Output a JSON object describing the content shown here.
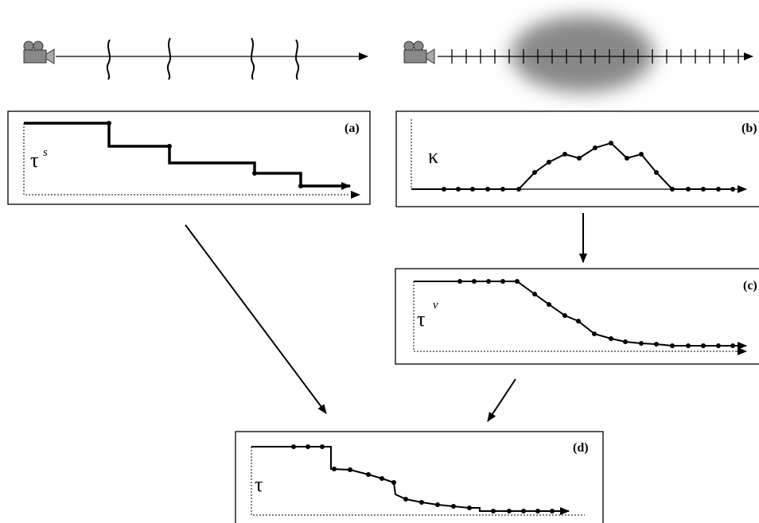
{
  "panels": [
    {
      "label": "(a)",
      "symbol": "τ",
      "superscript": "s"
    },
    {
      "label": "(b)",
      "symbol": "κ"
    },
    {
      "label": "(c)",
      "symbol": "τ",
      "superscript": "v"
    },
    {
      "label": "(d)",
      "symbol": "τ"
    }
  ]
}
